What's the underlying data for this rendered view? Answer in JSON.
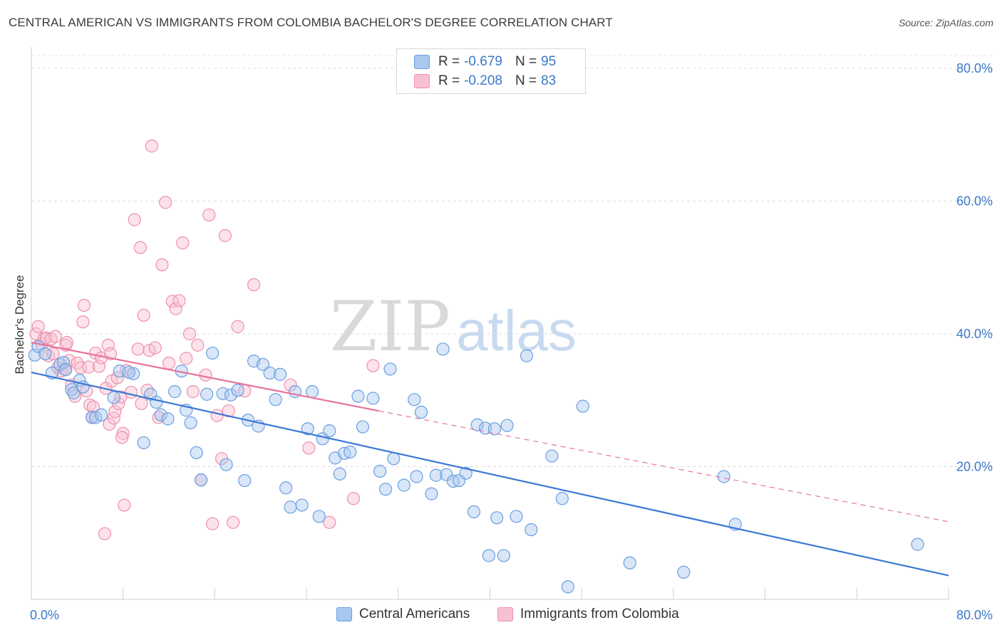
{
  "title": "CENTRAL AMERICAN VS IMMIGRANTS FROM COLOMBIA BACHELOR'S DEGREE CORRELATION CHART",
  "source": "Source: ZipAtlas.com",
  "watermark": {
    "bold": "ZIP",
    "light": "atlas"
  },
  "legend": {
    "rows": [
      {
        "r_label": "R =",
        "r_value": "-0.679",
        "n_label": "N =",
        "n_value": "95",
        "color": "#a8c8f0",
        "border": "#6a9fe0"
      },
      {
        "r_label": "R =",
        "r_value": "-0.208",
        "n_label": "N =",
        "n_value": "83",
        "color": "#f8c0d0",
        "border": "#ee8fac"
      }
    ]
  },
  "bottom_legend": [
    {
      "label": "Central Americans",
      "color": "#a8c8f0",
      "border": "#6a9fe0"
    },
    {
      "label": "Immigrants from Colombia",
      "color": "#f8c0d0",
      "border": "#ee8fac"
    }
  ],
  "chart_data": {
    "type": "scatter",
    "xlabel": "",
    "ylabel": "Bachelor's Degree",
    "xlim": [
      0,
      80
    ],
    "ylim": [
      0,
      82
    ],
    "x_tick_labels": [
      {
        "value": 0,
        "label": "0.0%"
      },
      {
        "value": 80,
        "label": "80.0%"
      }
    ],
    "y_tick_labels": [
      {
        "value": 20,
        "label": "20.0%"
      },
      {
        "value": 40,
        "label": "40.0%"
      },
      {
        "value": 60,
        "label": "60.0%"
      },
      {
        "value": 80,
        "label": "80.0%"
      }
    ],
    "grid": true,
    "colors": {
      "blue_line": "#3a78d4",
      "pink_line": "#e8739a",
      "tick_label": "#3a78c9"
    },
    "series": [
      {
        "name": "Central Americans",
        "fill": "#a8c8f0",
        "stroke": "#6a9fe0",
        "trend": {
          "x0": 0,
          "y0": 34.2,
          "x1": 80,
          "y1": 3.6,
          "dashed_to": null
        },
        "points": [
          [
            0.3,
            36.8
          ],
          [
            0.6,
            38.1
          ],
          [
            1.2,
            37.0
          ],
          [
            1.8,
            34.1
          ],
          [
            2.5,
            35.4
          ],
          [
            2.8,
            35.7
          ],
          [
            3.0,
            34.6
          ],
          [
            3.5,
            31.6
          ],
          [
            3.7,
            31.1
          ],
          [
            4.2,
            33.0
          ],
          [
            4.5,
            32.0
          ],
          [
            5.3,
            27.4
          ],
          [
            5.6,
            27.4
          ],
          [
            6.1,
            27.8
          ],
          [
            7.2,
            30.4
          ],
          [
            7.7,
            34.4
          ],
          [
            8.9,
            34.0
          ],
          [
            8.5,
            34.2
          ],
          [
            9.8,
            23.6
          ],
          [
            10.4,
            30.9
          ],
          [
            10.9,
            29.7
          ],
          [
            11.3,
            27.8
          ],
          [
            11.9,
            27.2
          ],
          [
            12.5,
            31.3
          ],
          [
            13.1,
            34.4
          ],
          [
            13.5,
            28.5
          ],
          [
            13.9,
            26.6
          ],
          [
            14.4,
            22.1
          ],
          [
            14.8,
            18.0
          ],
          [
            15.3,
            30.9
          ],
          [
            15.8,
            37.1
          ],
          [
            16.7,
            31.0
          ],
          [
            17.0,
            20.3
          ],
          [
            17.4,
            30.8
          ],
          [
            18.0,
            31.5
          ],
          [
            18.6,
            17.9
          ],
          [
            18.9,
            27.0
          ],
          [
            19.4,
            35.9
          ],
          [
            19.8,
            26.1
          ],
          [
            20.2,
            35.4
          ],
          [
            20.8,
            34.1
          ],
          [
            21.3,
            30.1
          ],
          [
            21.7,
            33.9
          ],
          [
            22.2,
            16.8
          ],
          [
            22.6,
            13.9
          ],
          [
            23.0,
            31.3
          ],
          [
            23.6,
            14.2
          ],
          [
            24.1,
            25.7
          ],
          [
            24.5,
            31.3
          ],
          [
            25.1,
            12.5
          ],
          [
            25.4,
            24.2
          ],
          [
            26.0,
            25.4
          ],
          [
            26.5,
            21.3
          ],
          [
            26.9,
            18.9
          ],
          [
            27.3,
            22.0
          ],
          [
            27.8,
            22.2
          ],
          [
            28.5,
            30.6
          ],
          [
            28.9,
            26.0
          ],
          [
            29.8,
            30.3
          ],
          [
            30.4,
            19.3
          ],
          [
            30.9,
            16.6
          ],
          [
            31.3,
            34.7
          ],
          [
            31.6,
            21.2
          ],
          [
            32.5,
            17.2
          ],
          [
            33.4,
            30.1
          ],
          [
            33.6,
            18.5
          ],
          [
            34.0,
            28.2
          ],
          [
            34.9,
            15.9
          ],
          [
            35.3,
            18.7
          ],
          [
            35.9,
            37.7
          ],
          [
            36.2,
            18.8
          ],
          [
            36.8,
            17.8
          ],
          [
            37.3,
            17.9
          ],
          [
            37.9,
            19.0
          ],
          [
            38.6,
            13.2
          ],
          [
            38.9,
            26.3
          ],
          [
            39.6,
            25.8
          ],
          [
            39.9,
            6.6
          ],
          [
            40.4,
            25.7
          ],
          [
            40.6,
            12.3
          ],
          [
            41.2,
            6.6
          ],
          [
            41.5,
            26.2
          ],
          [
            42.3,
            12.5
          ],
          [
            43.2,
            36.7
          ],
          [
            43.6,
            10.5
          ],
          [
            45.4,
            21.6
          ],
          [
            46.3,
            15.2
          ],
          [
            46.8,
            1.9
          ],
          [
            48.1,
            29.1
          ],
          [
            52.2,
            5.5
          ],
          [
            56.9,
            4.1
          ],
          [
            60.4,
            18.5
          ],
          [
            61.4,
            11.3
          ],
          [
            77.3,
            8.3
          ]
        ]
      },
      {
        "name": "Immigrants from Colombia",
        "fill": "#f8c0d0",
        "stroke": "#ee8fac",
        "trend": {
          "x0": 0,
          "y0": 38.7,
          "x1": 30.3,
          "y1": 28.4,
          "dashed_to": [
            80,
            11.7
          ]
        },
        "points": [
          [
            0.4,
            40.0
          ],
          [
            0.6,
            41.1
          ],
          [
            0.9,
            38.5
          ],
          [
            1.1,
            39.3
          ],
          [
            1.3,
            39.4
          ],
          [
            1.5,
            36.7
          ],
          [
            1.7,
            39.2
          ],
          [
            1.9,
            37.0
          ],
          [
            2.1,
            39.6
          ],
          [
            2.3,
            34.9
          ],
          [
            2.6,
            34.4
          ],
          [
            2.9,
            34.7
          ],
          [
            3.0,
            38.3
          ],
          [
            3.3,
            36.0
          ],
          [
            3.5,
            32.3
          ],
          [
            3.8,
            30.6
          ],
          [
            4.0,
            35.6
          ],
          [
            4.3,
            34.9
          ],
          [
            4.5,
            41.8
          ],
          [
            4.8,
            31.4
          ],
          [
            4.6,
            44.3
          ],
          [
            5.0,
            35.0
          ],
          [
            5.1,
            29.3
          ],
          [
            5.3,
            27.5
          ],
          [
            5.6,
            37.1
          ],
          [
            5.9,
            35.1
          ],
          [
            6.1,
            36.4
          ],
          [
            6.5,
            31.8
          ],
          [
            6.7,
            38.3
          ],
          [
            6.8,
            26.4
          ],
          [
            6.9,
            37.0
          ],
          [
            7.0,
            32.9
          ],
          [
            7.2,
            27.3
          ],
          [
            7.3,
            28.3
          ],
          [
            7.5,
            33.4
          ],
          [
            7.6,
            29.5
          ],
          [
            7.8,
            30.5
          ],
          [
            8.0,
            25.0
          ],
          [
            8.1,
            14.2
          ],
          [
            8.3,
            34.5
          ],
          [
            8.7,
            31.2
          ],
          [
            9.0,
            57.2
          ],
          [
            9.3,
            37.7
          ],
          [
            9.5,
            53.0
          ],
          [
            9.8,
            42.8
          ],
          [
            10.1,
            31.5
          ],
          [
            10.3,
            37.5
          ],
          [
            10.5,
            68.3
          ],
          [
            10.8,
            37.9
          ],
          [
            11.1,
            27.4
          ],
          [
            11.4,
            50.4
          ],
          [
            11.7,
            59.8
          ],
          [
            12.0,
            35.6
          ],
          [
            12.3,
            44.9
          ],
          [
            12.6,
            43.8
          ],
          [
            12.9,
            45.0
          ],
          [
            13.2,
            53.7
          ],
          [
            13.5,
            36.3
          ],
          [
            13.8,
            40.0
          ],
          [
            14.1,
            31.3
          ],
          [
            14.5,
            38.3
          ],
          [
            14.8,
            18.0
          ],
          [
            15.2,
            33.8
          ],
          [
            15.5,
            57.9
          ],
          [
            15.8,
            11.4
          ],
          [
            16.2,
            27.7
          ],
          [
            16.6,
            21.2
          ],
          [
            16.9,
            54.8
          ],
          [
            17.2,
            28.4
          ],
          [
            17.6,
            11.6
          ],
          [
            18.0,
            41.1
          ],
          [
            18.6,
            31.4
          ],
          [
            19.4,
            47.4
          ],
          [
            22.6,
            32.3
          ],
          [
            24.2,
            22.8
          ],
          [
            26.0,
            11.6
          ],
          [
            28.1,
            15.2
          ],
          [
            29.8,
            35.2
          ],
          [
            6.4,
            9.9
          ],
          [
            7.9,
            24.4
          ],
          [
            5.4,
            29.0
          ],
          [
            3.1,
            38.7
          ],
          [
            9.6,
            29.5
          ]
        ]
      }
    ]
  }
}
